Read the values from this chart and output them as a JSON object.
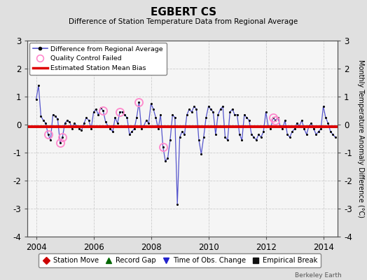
{
  "title": "EGBERT CS",
  "subtitle": "Difference of Station Temperature Data from Regional Average",
  "ylabel_right": "Monthly Temperature Anomaly Difference (°C)",
  "xlim": [
    2003.7,
    2014.5
  ],
  "ylim": [
    -4,
    3
  ],
  "yticks": [
    -4,
    -3,
    -2,
    -1,
    0,
    1,
    2,
    3
  ],
  "xticks": [
    2004,
    2006,
    2008,
    2010,
    2012,
    2014
  ],
  "bg_color": "#e0e0e0",
  "plot_bg_color": "#f5f5f5",
  "line_color": "#5555cc",
  "marker_color": "#000000",
  "bias_color": "#dd0000",
  "bias_value": -0.08,
  "qc_fail_color": "#ff88cc",
  "time_series_x": [
    2004.0,
    2004.083,
    2004.167,
    2004.25,
    2004.333,
    2004.417,
    2004.5,
    2004.583,
    2004.667,
    2004.75,
    2004.833,
    2004.917,
    2005.0,
    2005.083,
    2005.167,
    2005.25,
    2005.333,
    2005.417,
    2005.5,
    2005.583,
    2005.667,
    2005.75,
    2005.833,
    2005.917,
    2006.0,
    2006.083,
    2006.167,
    2006.25,
    2006.333,
    2006.417,
    2006.5,
    2006.583,
    2006.667,
    2006.75,
    2006.833,
    2006.917,
    2007.0,
    2007.083,
    2007.167,
    2007.25,
    2007.333,
    2007.417,
    2007.5,
    2007.583,
    2007.667,
    2007.75,
    2007.833,
    2007.917,
    2008.0,
    2008.083,
    2008.167,
    2008.25,
    2008.333,
    2008.417,
    2008.5,
    2008.583,
    2008.667,
    2008.75,
    2008.833,
    2008.917,
    2009.0,
    2009.083,
    2009.167,
    2009.25,
    2009.333,
    2009.417,
    2009.5,
    2009.583,
    2009.667,
    2009.75,
    2009.833,
    2009.917,
    2010.0,
    2010.083,
    2010.167,
    2010.25,
    2010.333,
    2010.417,
    2010.5,
    2010.583,
    2010.667,
    2010.75,
    2010.833,
    2010.917,
    2011.0,
    2011.083,
    2011.167,
    2011.25,
    2011.333,
    2011.417,
    2011.5,
    2011.583,
    2011.667,
    2011.75,
    2011.833,
    2011.917,
    2012.0,
    2012.083,
    2012.167,
    2012.25,
    2012.333,
    2012.417,
    2012.5,
    2012.583,
    2012.667,
    2012.75,
    2012.833,
    2012.917,
    2013.0,
    2013.083,
    2013.167,
    2013.25,
    2013.333,
    2013.417,
    2013.5,
    2013.583,
    2013.667,
    2013.75,
    2013.833,
    2013.917,
    2014.0,
    2014.083,
    2014.167,
    2014.25,
    2014.333,
    2014.417
  ],
  "time_series_y": [
    0.9,
    1.4,
    0.3,
    0.15,
    0.05,
    -0.35,
    -0.55,
    0.35,
    0.3,
    0.2,
    -0.65,
    -0.45,
    0.05,
    0.15,
    0.1,
    -0.15,
    0.05,
    -0.05,
    -0.15,
    -0.2,
    0.05,
    0.25,
    0.15,
    -0.15,
    0.45,
    0.55,
    0.35,
    0.6,
    0.5,
    0.1,
    -0.05,
    -0.15,
    -0.25,
    0.25,
    0.05,
    0.45,
    0.45,
    0.35,
    0.25,
    -0.35,
    -0.25,
    -0.15,
    0.25,
    0.8,
    -0.15,
    -0.05,
    0.15,
    0.05,
    0.75,
    0.55,
    0.25,
    -0.15,
    0.35,
    -0.8,
    -1.3,
    -1.2,
    -0.55,
    0.35,
    0.25,
    -2.85,
    -0.45,
    -0.25,
    -0.35,
    0.35,
    0.55,
    0.45,
    0.65,
    0.55,
    -0.55,
    -1.05,
    -0.45,
    0.25,
    0.65,
    0.55,
    0.45,
    -0.35,
    0.35,
    0.55,
    0.65,
    -0.45,
    -0.55,
    0.45,
    0.55,
    0.35,
    0.35,
    -0.35,
    -0.55,
    0.35,
    0.25,
    0.15,
    -0.35,
    -0.45,
    -0.55,
    -0.35,
    -0.45,
    -0.25,
    0.45,
    -0.05,
    -0.15,
    0.25,
    0.15,
    0.25,
    -0.05,
    -0.15,
    0.15,
    -0.35,
    -0.45,
    -0.25,
    -0.15,
    0.05,
    -0.05,
    0.15,
    -0.15,
    -0.35,
    -0.05,
    0.05,
    -0.15,
    -0.35,
    -0.25,
    -0.15,
    0.65,
    0.25,
    0.05,
    -0.25,
    -0.35,
    -0.45
  ],
  "qc_fail_indices": [
    5,
    10,
    11,
    28,
    35,
    43,
    53,
    99,
    100
  ],
  "bottom_legend_items": [
    {
      "label": "Station Move",
      "color": "#cc0000",
      "marker": "D"
    },
    {
      "label": "Record Gap",
      "color": "#006600",
      "marker": "^"
    },
    {
      "label": "Time of Obs. Change",
      "color": "#2222cc",
      "marker": "v"
    },
    {
      "label": "Empirical Break",
      "color": "#111111",
      "marker": "s"
    }
  ]
}
